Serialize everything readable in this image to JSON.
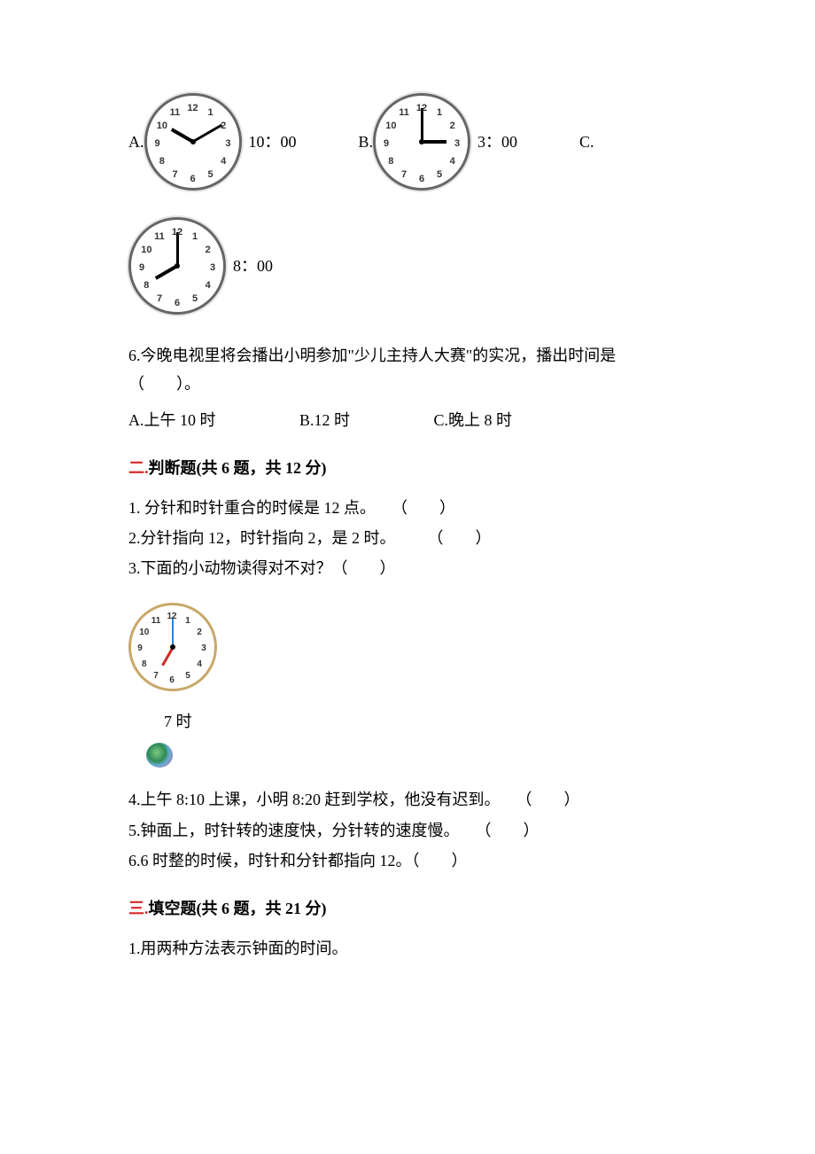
{
  "options5": {
    "a_label": "A.",
    "a_time": " 10：00",
    "b_label": "B.",
    "b_time": " 3：00",
    "c_label": "C.",
    "c_time": " 8：00"
  },
  "clocks5": {
    "a": {
      "hour_angle": 300,
      "minute_angle": 60
    },
    "b": {
      "hour_angle": 90,
      "minute_angle": 0
    },
    "c": {
      "hour_angle": 240,
      "minute_angle": 0
    }
  },
  "q6": {
    "text": "6.今晚电视里将会播出小明参加\"少儿主持人大赛\"的实况，播出时间是（　　）。",
    "a": "A.上午 10 时",
    "b": "B.12 时",
    "c": "C.晚上 8 时"
  },
  "section2": {
    "title_prefix": "二.",
    "title_main": "判断题(共 6 题，共 12 分)"
  },
  "judge": {
    "l1": "1. 分针和时针重合的时候是 12 点。　　（　　）",
    "l2": "2.分针指向 12，时针指向 2，是 2 时。　　　（　　）",
    "l3": "3.下面的小动物读得对不对？（　　）",
    "clock3": {
      "hour_angle": 210,
      "minute_angle": 0
    },
    "animal_label": "7 时",
    "l4": "4.上午 8:10 上课，小明 8:20 赶到学校，他没有迟到。　　（　　）",
    "l5": "5.钟面上，时针转的速度快，分针转的速度慢。　　（　　）",
    "l6": "6.6 时整的时候，时针和分针都指向 12。（　　）"
  },
  "section3": {
    "title_prefix": "三.",
    "title_main": "填空题(共 6 题，共 21 分)"
  },
  "fill": {
    "l1": "1.用两种方法表示钟面的时间。"
  },
  "clock_face": {
    "numbers": [
      "12",
      "1",
      "2",
      "3",
      "4",
      "5",
      "6",
      "7",
      "8",
      "9",
      "10",
      "11"
    ],
    "num_color": "#333333"
  }
}
